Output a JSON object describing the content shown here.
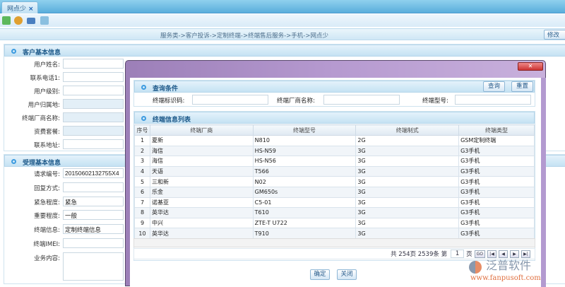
{
  "tab": {
    "label": "网点少",
    "close": "×"
  },
  "toolbar": {
    "icons": [
      "add-icon",
      "user-icon",
      "book-icon",
      "export-icon"
    ]
  },
  "breadcrumb": "服务类->客户投诉->定制终端->终端售后服务->手机->网点少",
  "edit_button": "修改",
  "customer": {
    "title": "客户基本信息",
    "fields": [
      {
        "label": "用户姓名:",
        "value": ""
      },
      {
        "label": "联系电话1:",
        "value": ""
      },
      {
        "label": "用户级别:",
        "value": ""
      },
      {
        "label": "用户归属地:",
        "value": ""
      },
      {
        "label": "终端厂商名称:",
        "value": ""
      },
      {
        "label": "资费套餐:",
        "value": ""
      },
      {
        "label": "联系地址:",
        "value": ""
      }
    ]
  },
  "request": {
    "title": "受理基本信息",
    "fields": [
      {
        "label": "请求编号:",
        "value": "20150602132755X4"
      },
      {
        "label": "回复方式:",
        "value": ""
      },
      {
        "label": "紧急程度:",
        "value": "紧急"
      },
      {
        "label": "重要程度:",
        "value": "一般"
      },
      {
        "label": "终端信息:",
        "value": "定制终端信息"
      },
      {
        "label": "终端IMEI:",
        "value": ""
      },
      {
        "label": "业务内容:",
        "value": ""
      }
    ]
  },
  "dialog": {
    "query": {
      "title": "查询条件",
      "id_label": "终端标识码:",
      "vendor_label": "终端厂商名称:",
      "model_label": "终端型号:",
      "search": "查询",
      "reset": "重置"
    },
    "list": {
      "title": "终端信息列表",
      "columns": [
        "序号",
        "终端厂商",
        "终端型号",
        "终端制式",
        "终端类型"
      ],
      "rows": [
        [
          "1",
          "夏新",
          "N810",
          "2G",
          "GSM定制终端"
        ],
        [
          "2",
          "海信",
          "HS-N59",
          "3G",
          "G3手机"
        ],
        [
          "3",
          "海信",
          "HS-N56",
          "3G",
          "G3手机"
        ],
        [
          "4",
          "天语",
          "T566",
          "3G",
          "G3手机"
        ],
        [
          "5",
          "三和新",
          "N02",
          "3G",
          "G3手机"
        ],
        [
          "6",
          "乐金",
          "GM650s",
          "3G",
          "G3手机"
        ],
        [
          "7",
          "诺基亚",
          "C5-01",
          "3G",
          "G3手机"
        ],
        [
          "8",
          "英华达",
          "T610",
          "3G",
          "G3手机"
        ],
        [
          "9",
          "中兴",
          "ZTE-T U722",
          "3G",
          "G3手机"
        ],
        [
          "10",
          "英华达",
          "T910",
          "3G",
          "G3手机"
        ]
      ]
    },
    "pager": {
      "prefix": "共",
      "pages": "254",
      "page_unit": "页",
      "total": "2539",
      "total_unit": "条",
      "nth": "第",
      "current": "1",
      "go": "GO"
    },
    "ok": "确定",
    "close": "关闭"
  },
  "watermark": {
    "brand": "泛普软件",
    "url": "www.fanpusoft.com"
  }
}
